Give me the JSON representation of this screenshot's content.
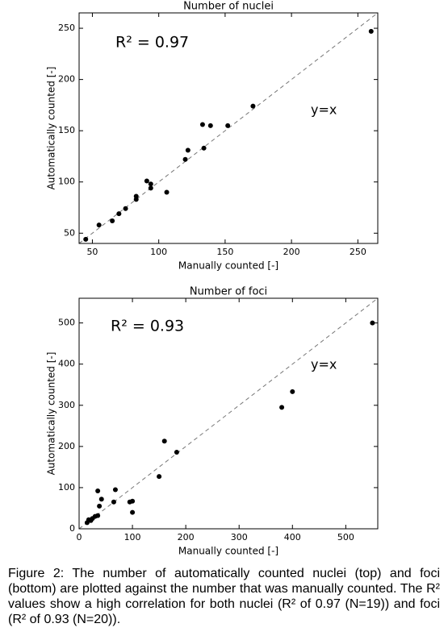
{
  "chart_data": [
    {
      "type": "scatter",
      "title": "Number of nuclei",
      "x_label": "Manually counted [-]",
      "y_label": "Automatically counted [-]",
      "annotations": [
        "R² = 0.97",
        "y=x"
      ],
      "color": "#000000",
      "x": [
        45,
        55,
        65,
        70,
        75,
        83,
        83,
        91,
        94,
        94,
        106,
        120,
        122,
        133,
        134,
        139,
        152,
        171,
        260
      ],
      "values": [
        44,
        58,
        62,
        69,
        74,
        83,
        86,
        101,
        94,
        98,
        90,
        122,
        131,
        156,
        133,
        155,
        155,
        174,
        247
      ],
      "xlim": [
        40,
        265
      ],
      "ylim": [
        40,
        265
      ],
      "xticks": [
        50,
        100,
        150,
        200,
        250
      ],
      "yticks": [
        50,
        100,
        150,
        200,
        250
      ]
    },
    {
      "type": "scatter",
      "title": "Number of foci",
      "x_label": "Manually counted [-]",
      "y_label": "Automatically counted [-]",
      "annotations": [
        "R² = 0.93",
        "y=x"
      ],
      "color": "#000000",
      "x": [
        15,
        18,
        22,
        25,
        30,
        35,
        35,
        38,
        42,
        65,
        68,
        95,
        100,
        100,
        150,
        160,
        183,
        380,
        400,
        550
      ],
      "values": [
        15,
        22,
        20,
        25,
        30,
        92,
        32,
        55,
        72,
        65,
        95,
        65,
        40,
        67,
        127,
        213,
        186,
        295,
        333,
        500
      ],
      "xlim": [
        0,
        560
      ],
      "ylim": [
        0,
        560
      ],
      "xticks": [
        0,
        100,
        200,
        300,
        400,
        500
      ],
      "yticks": [
        0,
        100,
        200,
        300,
        400,
        500
      ]
    }
  ],
  "caption": "Figure 2: The number of automatically counted nuclei (top) and foci (bottom) are plotted against the number that was manually counted. The R² values show a high correlation for both nuclei (R² of 0.97 (N=19)) and foci (R² of 0.93 (N=20))."
}
